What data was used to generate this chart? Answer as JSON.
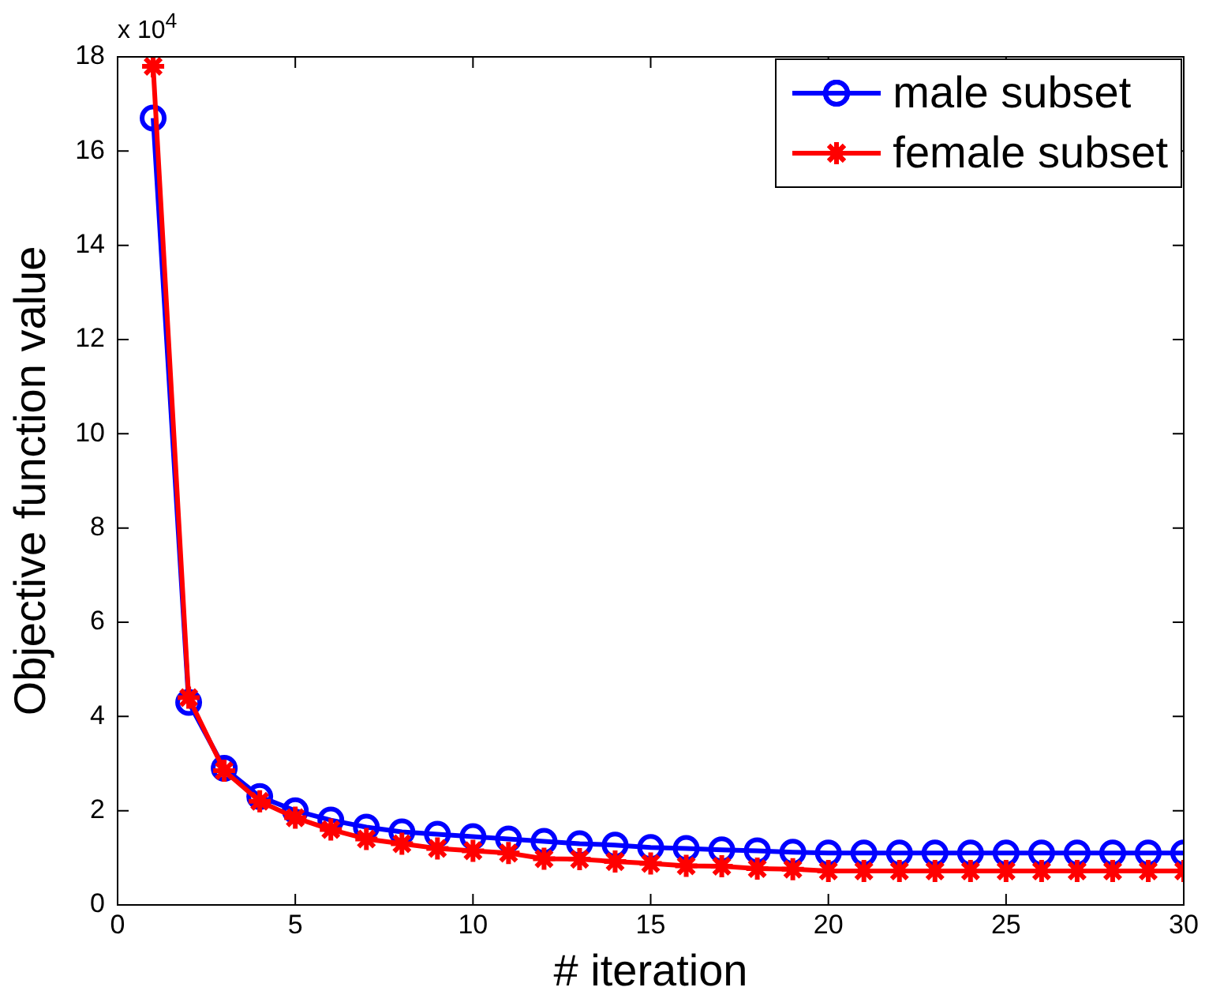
{
  "chart_data": {
    "type": "line",
    "xlabel": "# iteration",
    "ylabel": "Objective function value",
    "annotations": [
      "x 10$^{4}$"
    ],
    "x": [
      1,
      2,
      3,
      4,
      5,
      6,
      7,
      8,
      9,
      10,
      11,
      12,
      13,
      14,
      15,
      16,
      17,
      18,
      19,
      20,
      21,
      22,
      23,
      24,
      25,
      26,
      27,
      28,
      29,
      30
    ],
    "series": [
      {
        "name": "male subset",
        "color": "#0000ff",
        "marker": "circle",
        "values": [
          16.7,
          4.3,
          2.9,
          2.3,
          2.0,
          1.8,
          1.65,
          1.55,
          1.5,
          1.45,
          1.4,
          1.35,
          1.3,
          1.27,
          1.22,
          1.2,
          1.17,
          1.15,
          1.12,
          1.1,
          1.1,
          1.1,
          1.1,
          1.1,
          1.1,
          1.1,
          1.1,
          1.1,
          1.1,
          1.1
        ]
      },
      {
        "name": "female subset",
        "color": "#ff0000",
        "marker": "cross",
        "values": [
          17.8,
          4.4,
          2.85,
          2.2,
          1.85,
          1.6,
          1.4,
          1.3,
          1.2,
          1.15,
          1.1,
          0.98,
          0.97,
          0.92,
          0.88,
          0.83,
          0.82,
          0.77,
          0.76,
          0.72,
          0.72,
          0.72,
          0.72,
          0.72,
          0.72,
          0.72,
          0.72,
          0.72,
          0.72,
          0.72
        ]
      }
    ],
    "xlim": [
      0,
      30
    ],
    "xticks": [
      0,
      5,
      10,
      15,
      20,
      25,
      30
    ],
    "ylim": [
      0,
      18
    ],
    "yticks": [
      0,
      2,
      4,
      6,
      8,
      10,
      12,
      14,
      16,
      18
    ],
    "grid": false,
    "legend": "top right",
    "line_style": "solid"
  }
}
